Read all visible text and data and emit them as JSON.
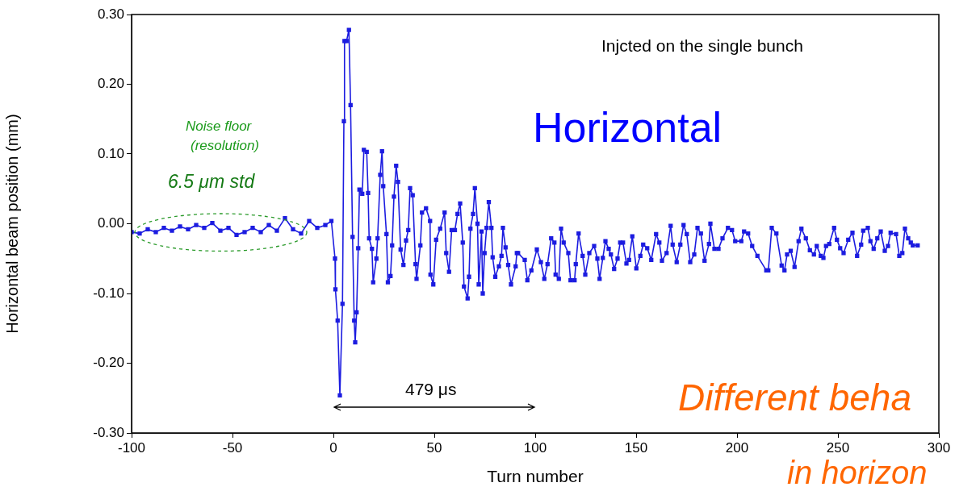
{
  "chart_data": {
    "type": "line",
    "xlabel": "Turn number",
    "ylabel": "Horizontal beam position (mm)",
    "xlim": [
      -100,
      300
    ],
    "xticks": [
      -100,
      -50,
      0,
      50,
      100,
      150,
      200,
      250,
      300
    ],
    "ylim": [
      -0.3,
      0.3
    ],
    "yticks": [
      {
        "value": -0.3,
        "label": "-0.30"
      },
      {
        "value": -0.2,
        "label": "-0.20"
      },
      {
        "value": -0.1,
        "label": "-0.10"
      },
      {
        "value": 0,
        "label": "0.00"
      },
      {
        "value": 0.1,
        "label": "0.10"
      },
      {
        "value": 0.2,
        "label": "0.20"
      },
      {
        "value": 0.3,
        "label": "0.30"
      }
    ],
    "grid": false,
    "legend": false,
    "marker": "square",
    "line_style": "solid",
    "annotations": [
      "Injcted on the single bunch",
      "Horizontal",
      "Noise floor",
      "(resolution)",
      "6.5 μm std",
      "479 μs",
      "Different beha",
      "in horizon"
    ],
    "series": [
      {
        "color": "#1c1ce0",
        "x": [
          -100,
          -96,
          -92,
          -88,
          -84,
          -80,
          -76,
          -72,
          -68,
          -64,
          -60,
          -56,
          -52,
          -48,
          -44,
          -40,
          -36,
          -32,
          -28,
          -24,
          -20,
          -16,
          -12,
          -8,
          -4,
          -1,
          0.8,
          1,
          2.1,
          3.2,
          4.5,
          5.2,
          5.5,
          6.5,
          7.7,
          8.5,
          9.5,
          10.3,
          10.8,
          11.5,
          12.3,
          12.9,
          14.3,
          15.1,
          16.5,
          17.2,
          17.7,
          19.1,
          19.7,
          21.3,
          21.9,
          23.2,
          24.1,
          24.7,
          26.3,
          27,
          28.3,
          29.1,
          30,
          31.1,
          32,
          33.3,
          34.7,
          36,
          37.1,
          38,
          39.3,
          40.7,
          41.2,
          43.1,
          43.9,
          45.9,
          47.9,
          48.1,
          49.5,
          50.9,
          52.9,
          55.1,
          55.9,
          57.3,
          58.6,
          60.2,
          61.5,
          62.8,
          64.1,
          64.7,
          66.5,
          67.2,
          67.9,
          69.2,
          70.1,
          71.4,
          72,
          73.4,
          74,
          74.9,
          75.9,
          77,
          78.3,
          78.9,
          80.2,
          82,
          83.3,
          84,
          85.3,
          86.6,
          88,
          90.3,
          90.9,
          91.5,
          94.8,
          96.1,
          98.1,
          100.8,
          102.8,
          104.5,
          106.1,
          107.9,
          109.5,
          110.1,
          111.7,
          112.8,
          114.1,
          116.4,
          117.5,
          119.5,
          120.1,
          121.5,
          123.5,
          124.8,
          126.8,
          129.2,
          130.8,
          131.9,
          133.5,
          134.8,
          136.4,
          137.5,
          139.1,
          140.8,
          142.1,
          143.5,
          145.2,
          146.5,
          148.1,
          150.1,
          152.1,
          153.5,
          155.5,
          157.5,
          159.9,
          161.5,
          162.8,
          165.1,
          167.1,
          168.1,
          170.1,
          171.9,
          173.5,
          175.1,
          176.8,
          178.8,
          180.4,
          182.1,
          183.9,
          186.1,
          186.8,
          188.8,
          190.8,
          192.8,
          195.5,
          197.5,
          199.1,
          202.1,
          203.5,
          205.5,
          207.5,
          210.1,
          214.5,
          215.5,
          217.2,
          219.5,
          222.1,
          223.5,
          224.8,
          226.6,
          228.5,
          230.5,
          231.9,
          234.1,
          236.1,
          238.1,
          239.5,
          241.5,
          242.8,
          244.1,
          245.7,
          248.1,
          249.5,
          251.1,
          252.8,
          255.1,
          257.2,
          259.5,
          261.5,
          262.5,
          264.8,
          266.1,
          267.7,
          269.5,
          271.2,
          273.2,
          274.8,
          276.1,
          278.8,
          280.4,
          281.9,
          283.2,
          284.8,
          286.1,
          287.1,
          289.5
        ],
        "values": [
          -0.012,
          -0.014,
          -0.008,
          -0.012,
          -0.006,
          -0.01,
          -0.004,
          -0.008,
          -0.002,
          -0.006,
          0.001,
          -0.01,
          -0.006,
          -0.016,
          -0.012,
          -0.006,
          -0.012,
          -0.002,
          -0.01,
          0.008,
          -0.008,
          -0.014,
          0.004,
          -0.006,
          -0.002,
          0.004,
          -0.05,
          -0.094,
          -0.139,
          -0.246,
          -0.115,
          0.147,
          0.262,
          0.262,
          0.278,
          0.17,
          -0.019,
          -0.139,
          -0.17,
          -0.127,
          -0.035,
          0.049,
          0.043,
          0.106,
          0.103,
          0.044,
          -0.021,
          -0.036,
          -0.084,
          -0.05,
          -0.021,
          0.07,
          0.104,
          0.054,
          -0.015,
          -0.084,
          -0.075,
          -0.031,
          0.039,
          0.083,
          0.06,
          -0.037,
          -0.059,
          -0.024,
          -0.009,
          0.051,
          0.041,
          -0.058,
          -0.079,
          -0.031,
          0.016,
          0.022,
          0.004,
          -0.073,
          -0.087,
          -0.023,
          -0.007,
          0.016,
          -0.042,
          -0.069,
          -0.009,
          -0.009,
          0.014,
          0.029,
          -0.027,
          -0.09,
          -0.107,
          -0.076,
          -0.007,
          0.014,
          0.051,
          0,
          -0.087,
          -0.011,
          -0.1,
          -0.042,
          -0.006,
          0.031,
          -0.006,
          -0.048,
          -0.076,
          -0.061,
          -0.046,
          -0.006,
          -0.034,
          -0.059,
          -0.087,
          -0.061,
          -0.042,
          -0.042,
          -0.052,
          -0.081,
          -0.067,
          -0.037,
          -0.055,
          -0.079,
          -0.058,
          -0.021,
          -0.027,
          -0.073,
          -0.079,
          -0.007,
          -0.027,
          -0.042,
          -0.081,
          -0.081,
          -0.058,
          -0.014,
          -0.046,
          -0.073,
          -0.042,
          -0.032,
          -0.05,
          -0.079,
          -0.049,
          -0.025,
          -0.036,
          -0.044,
          -0.065,
          -0.05,
          -0.027,
          -0.027,
          -0.057,
          -0.052,
          -0.018,
          -0.064,
          -0.046,
          -0.03,
          -0.035,
          -0.052,
          -0.015,
          -0.027,
          -0.053,
          -0.042,
          -0.003,
          -0.03,
          -0.055,
          -0.03,
          -0.002,
          -0.015,
          -0.055,
          -0.044,
          -0.006,
          -0.014,
          -0.053,
          -0.029,
          0,
          -0.036,
          -0.036,
          -0.021,
          -0.006,
          -0.009,
          -0.025,
          -0.025,
          -0.011,
          -0.014,
          -0.032,
          -0.046,
          -0.067,
          -0.067,
          -0.006,
          -0.014,
          -0.06,
          -0.067,
          -0.044,
          -0.039,
          -0.062,
          -0.025,
          -0.007,
          -0.021,
          -0.038,
          -0.044,
          -0.032,
          -0.046,
          -0.049,
          -0.032,
          -0.029,
          -0.006,
          -0.023,
          -0.035,
          -0.042,
          -0.023,
          -0.013,
          -0.046,
          -0.03,
          -0.01,
          -0.006,
          -0.025,
          -0.036,
          -0.021,
          -0.011,
          -0.039,
          -0.032,
          -0.013,
          -0.015,
          -0.046,
          -0.042,
          -0.007,
          -0.021,
          -0.027,
          -0.031,
          -0.031
        ]
      }
    ]
  }
}
